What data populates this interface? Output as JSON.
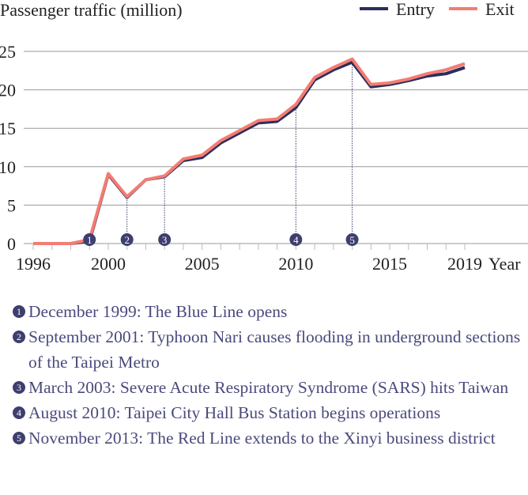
{
  "chart_data": {
    "type": "line",
    "title": "Passenger traffic (million)",
    "xlabel": "Year",
    "ylabel": "Passenger traffic (million)",
    "x": [
      1996,
      1997,
      1998,
      1999,
      2000,
      2001,
      2002,
      2003,
      2004,
      2005,
      2006,
      2007,
      2008,
      2009,
      2010,
      2011,
      2012,
      2013,
      2014,
      2015,
      2016,
      2017,
      2018,
      2019
    ],
    "series": [
      {
        "name": "Entry",
        "color": "#2b2d5c",
        "values": [
          0,
          0,
          0,
          0.3,
          9.0,
          6.0,
          8.3,
          8.7,
          10.8,
          11.2,
          13.1,
          14.4,
          15.7,
          15.9,
          17.7,
          21.3,
          22.6,
          23.6,
          20.4,
          20.7,
          21.2,
          21.8,
          22.1,
          22.9
        ]
      },
      {
        "name": "Exit",
        "color": "#f47c72",
        "values": [
          0,
          0,
          0,
          0.5,
          9.1,
          6.1,
          8.3,
          8.8,
          11.0,
          11.5,
          13.4,
          14.7,
          16.0,
          16.2,
          18.1,
          21.6,
          22.9,
          24.0,
          20.7,
          20.9,
          21.4,
          22.1,
          22.6,
          23.4
        ]
      }
    ],
    "ylim": [
      0,
      25
    ],
    "yticks": [
      "0",
      "5",
      "10",
      "15",
      "20",
      "25"
    ],
    "xticks": [
      {
        "year": 1996,
        "label": "1996"
      },
      {
        "year": 2000,
        "label": "2000"
      },
      {
        "year": 2005,
        "label": "2005"
      },
      {
        "year": 2010,
        "label": "2010"
      },
      {
        "year": 2015,
        "label": "2015"
      },
      {
        "year": 2019,
        "label": "2019"
      }
    ],
    "grid": true,
    "legend": "top-right",
    "markers": [
      {
        "n": "1",
        "year": 1999,
        "text": "December 1999: The Blue Line opens"
      },
      {
        "n": "2",
        "year": 2001,
        "text": "September 2001: Typhoon Nari causes flooding in underground sections of the Taipei Metro"
      },
      {
        "n": "3",
        "year": 2003,
        "text": "March 2003: Severe Acute Respiratory Syndrome (SARS) hits Taiwan"
      },
      {
        "n": "4",
        "year": 2010,
        "text": "August 2010: Taipei City Hall Bus Station begins operations"
      },
      {
        "n": "5",
        "year": 2013,
        "text": "November 2013: The Red Line extends to the Xinyi business district"
      }
    ]
  }
}
